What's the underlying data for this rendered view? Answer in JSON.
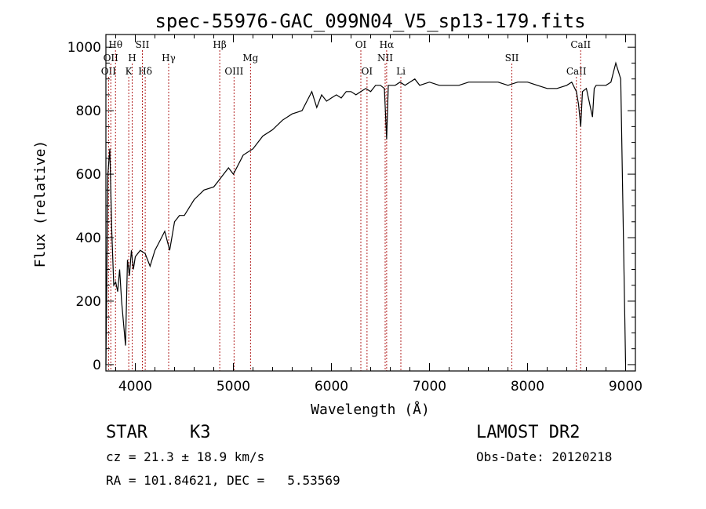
{
  "chart_data": {
    "type": "line",
    "title": "spec-55976-GAC_099N04_V5_sp13-179.fits",
    "xlabel": "Wavelength (Å)",
    "ylabel": "Flux (relative)",
    "xlim": [
      3700,
      9100
    ],
    "ylim": [
      -20,
      1040
    ],
    "xticks": [
      4000,
      5000,
      6000,
      7000,
      8000,
      9000
    ],
    "yticks": [
      0,
      200,
      400,
      600,
      800,
      1000
    ],
    "grid": false,
    "line_color": "#000000",
    "marker_color": "#b22222",
    "series": [
      {
        "x": [
          3700,
          3720,
          3740,
          3760,
          3780,
          3800,
          3820,
          3840,
          3860,
          3880,
          3900,
          3920,
          3940,
          3960,
          3980,
          4000,
          4050,
          4100,
          4150,
          4200,
          4250,
          4300,
          4350,
          4400,
          4450,
          4500,
          4600,
          4700,
          4800,
          4850,
          4900,
          4950,
          5000,
          5100,
          5200,
          5300,
          5400,
          5500,
          5600,
          5700,
          5800,
          5850,
          5900,
          5950,
          6000,
          6050,
          6100,
          6150,
          6200,
          6250,
          6300,
          6350,
          6400,
          6450,
          6500,
          6540,
          6563,
          6580,
          6600,
          6650,
          6700,
          6750,
          6800,
          6850,
          6900,
          7000,
          7100,
          7200,
          7300,
          7400,
          7500,
          7600,
          7700,
          7800,
          7900,
          8000,
          8100,
          8200,
          8300,
          8400,
          8450,
          8498,
          8520,
          8542,
          8560,
          8600,
          8662,
          8680,
          8700,
          8750,
          8800,
          8850,
          8900,
          8950,
          9000
        ],
        "values": [
          0,
          600,
          680,
          420,
          250,
          260,
          230,
          300,
          200,
          130,
          60,
          330,
          280,
          360,
          300,
          340,
          360,
          350,
          310,
          360,
          390,
          420,
          360,
          450,
          470,
          470,
          520,
          550,
          560,
          580,
          600,
          620,
          600,
          660,
          680,
          720,
          740,
          770,
          790,
          800,
          860,
          810,
          850,
          830,
          840,
          850,
          840,
          860,
          860,
          850,
          860,
          870,
          860,
          880,
          880,
          870,
          710,
          880,
          880,
          880,
          890,
          880,
          890,
          900,
          880,
          890,
          880,
          880,
          880,
          890,
          890,
          890,
          890,
          880,
          890,
          890,
          880,
          870,
          870,
          880,
          890,
          860,
          820,
          750,
          860,
          870,
          780,
          870,
          880,
          880,
          880,
          890,
          950,
          900,
          0
        ]
      }
    ],
    "line_markers": [
      {
        "wavelength": 3727,
        "label": "OII",
        "row": 3
      },
      {
        "wavelength": 3750,
        "label": "OII",
        "row": 2
      },
      {
        "wavelength": 3798,
        "label": "Hθ",
        "row": 1
      },
      {
        "wavelength": 3933,
        "label": "K",
        "row": 3
      },
      {
        "wavelength": 3968,
        "label": "H",
        "row": 2
      },
      {
        "wavelength": 4072,
        "label": "SII",
        "row": 1
      },
      {
        "wavelength": 4101,
        "label": "Hδ",
        "row": 3
      },
      {
        "wavelength": 4340,
        "label": "Hγ",
        "row": 2
      },
      {
        "wavelength": 4861,
        "label": "Hβ",
        "row": 1
      },
      {
        "wavelength": 5007,
        "label": "OIII",
        "row": 3
      },
      {
        "wavelength": 5175,
        "label": "Mg",
        "row": 2
      },
      {
        "wavelength": 6300,
        "label": "OI",
        "row": 1
      },
      {
        "wavelength": 6363,
        "label": "OI",
        "row": 3
      },
      {
        "wavelength": 6548,
        "label": "NII",
        "row": 2
      },
      {
        "wavelength": 6563,
        "label": "Hα",
        "row": 1
      },
      {
        "wavelength": 6708,
        "label": "Li",
        "row": 3
      },
      {
        "wavelength": 7840,
        "label": "SII",
        "row": 2
      },
      {
        "wavelength": 8498,
        "label": "CaII",
        "row": 3
      },
      {
        "wavelength": 8542,
        "label": "CaII",
        "row": 1
      }
    ]
  },
  "info": {
    "object_class": "STAR",
    "subclass": "K3",
    "survey": "LAMOST DR2",
    "redshift_line": "cz = 21.3 ± 18.9 km/s",
    "obs_date_line": "Obs-Date: 20120218",
    "coord_line": "RA = 101.84621, DEC =   5.53569"
  }
}
